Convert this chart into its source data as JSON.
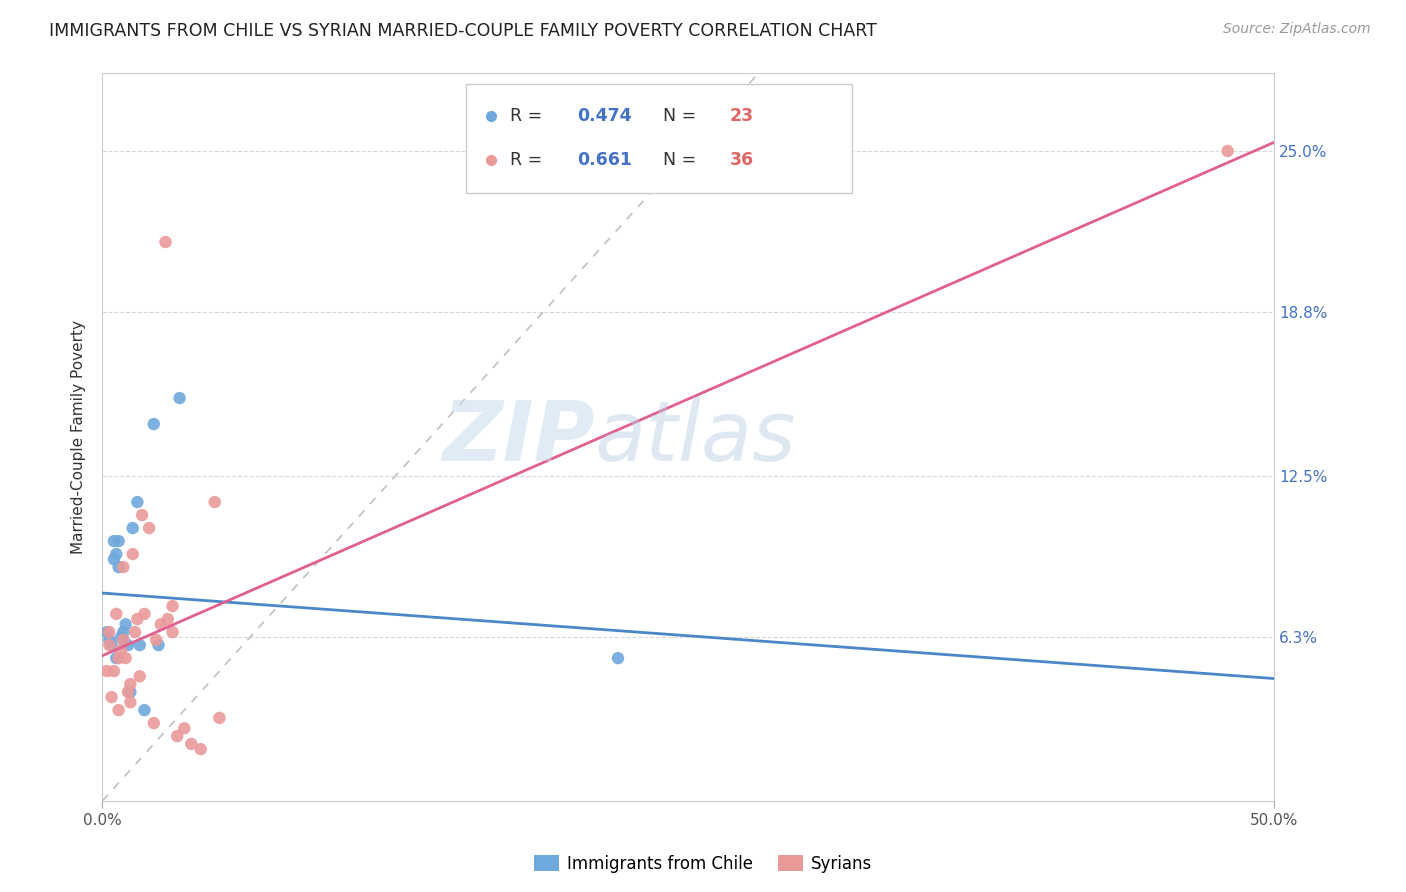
{
  "title": "IMMIGRANTS FROM CHILE VS SYRIAN MARRIED-COUPLE FAMILY POVERTY CORRELATION CHART",
  "source": "Source: ZipAtlas.com",
  "ylabel": "Married-Couple Family Poverty",
  "xlim": [
    0.0,
    0.5
  ],
  "ylim": [
    0.0,
    0.28
  ],
  "xtick_vals": [
    0.0,
    0.5
  ],
  "xtick_labels": [
    "0.0%",
    "50.0%"
  ],
  "ytick_vals": [
    0.063,
    0.125,
    0.188,
    0.25
  ],
  "ytick_labels": [
    "6.3%",
    "12.5%",
    "18.8%",
    "25.0%"
  ],
  "chile_R": 0.474,
  "chile_N": 23,
  "syria_R": 0.661,
  "syria_N": 36,
  "chile_color": "#6fa8dc",
  "syria_color": "#ea9999",
  "chile_line_color": "#4a86c8",
  "syria_line_color": "#e06090",
  "diagonal_color": "#c0c0c0",
  "watermark_zip": "ZIP",
  "watermark_atlas": "atlas",
  "chile_x": [
    0.002,
    0.003,
    0.004,
    0.005,
    0.005,
    0.006,
    0.006,
    0.007,
    0.007,
    0.008,
    0.009,
    0.009,
    0.01,
    0.011,
    0.012,
    0.013,
    0.015,
    0.016,
    0.018,
    0.022,
    0.024,
    0.033,
    0.22
  ],
  "chile_y": [
    0.065,
    0.062,
    0.06,
    0.093,
    0.1,
    0.055,
    0.095,
    0.09,
    0.1,
    0.063,
    0.062,
    0.065,
    0.068,
    0.06,
    0.042,
    0.105,
    0.115,
    0.06,
    0.035,
    0.145,
    0.06,
    0.155,
    0.055
  ],
  "syria_x": [
    0.002,
    0.003,
    0.003,
    0.004,
    0.005,
    0.006,
    0.007,
    0.007,
    0.008,
    0.009,
    0.009,
    0.01,
    0.011,
    0.012,
    0.012,
    0.013,
    0.014,
    0.015,
    0.016,
    0.017,
    0.018,
    0.02,
    0.022,
    0.023,
    0.025,
    0.027,
    0.028,
    0.03,
    0.03,
    0.032,
    0.035,
    0.038,
    0.042,
    0.048,
    0.05,
    0.48
  ],
  "syria_y": [
    0.05,
    0.06,
    0.065,
    0.04,
    0.05,
    0.072,
    0.035,
    0.055,
    0.058,
    0.062,
    0.09,
    0.055,
    0.042,
    0.038,
    0.045,
    0.095,
    0.065,
    0.07,
    0.048,
    0.11,
    0.072,
    0.105,
    0.03,
    0.062,
    0.068,
    0.215,
    0.07,
    0.065,
    0.075,
    0.025,
    0.028,
    0.022,
    0.02,
    0.115,
    0.032,
    0.25
  ]
}
